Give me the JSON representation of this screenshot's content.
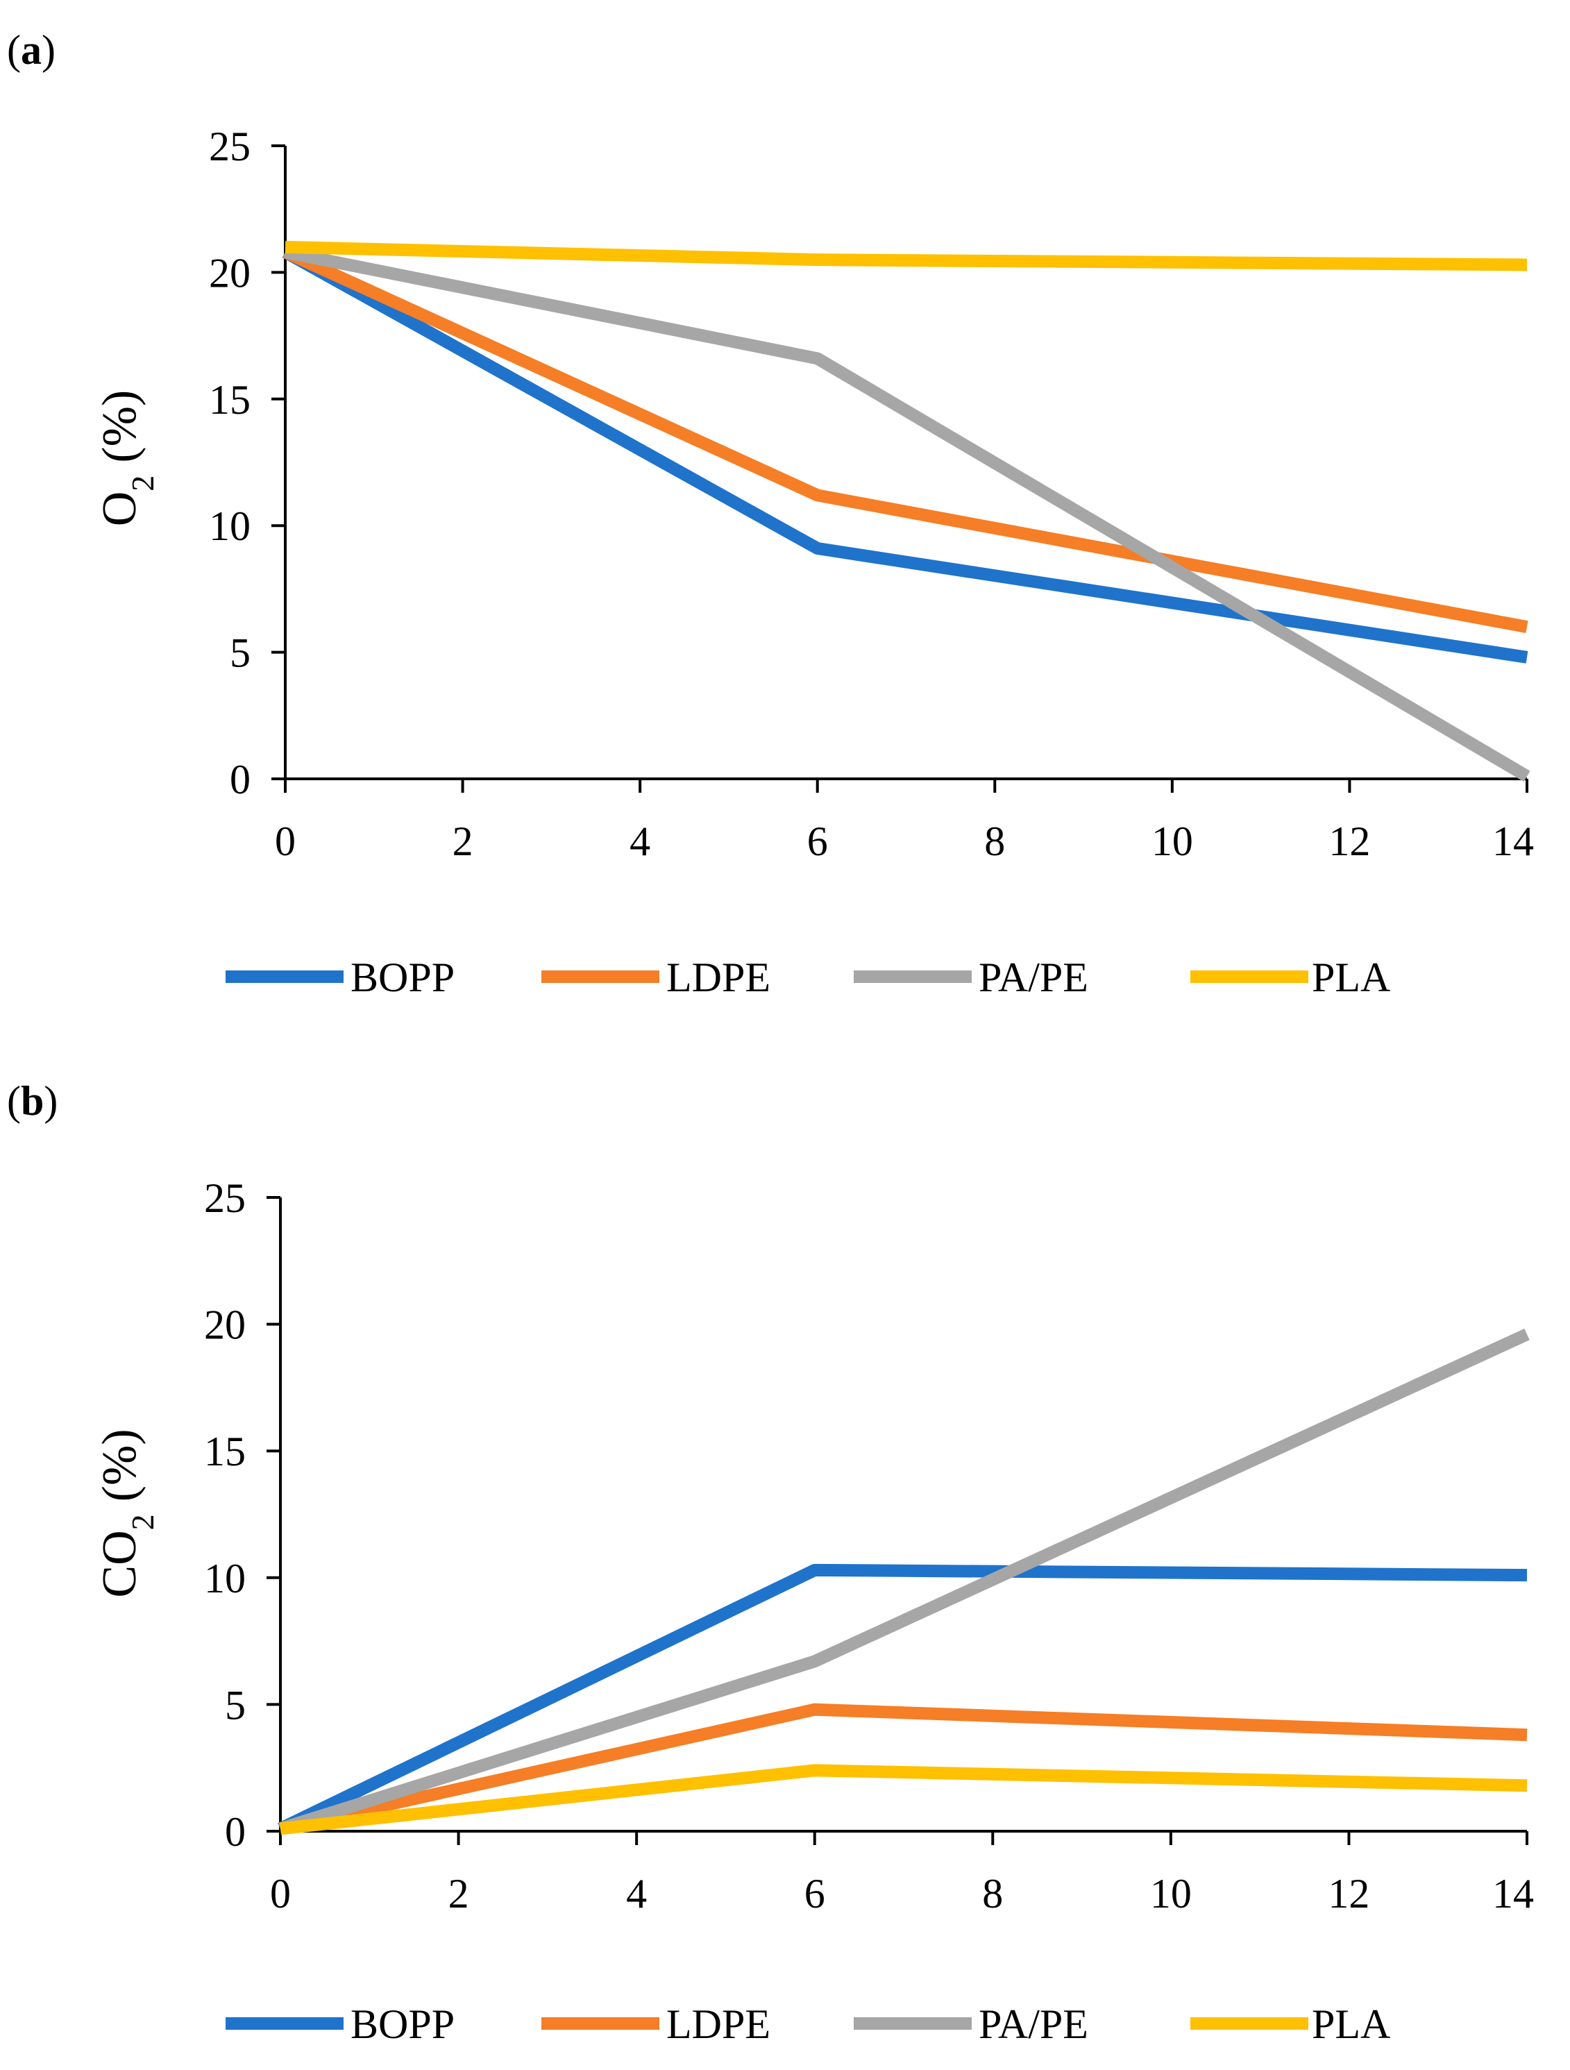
{
  "chart_data": [
    {
      "panel_label": "a",
      "type": "line",
      "title": "",
      "xlabel": "",
      "ylabel": "O2 (%)",
      "ylabel_main": "O",
      "ylabel_sub": "2",
      "ylabel_unit": "(%)",
      "x": [
        0,
        6,
        14
      ],
      "xlim": [
        0,
        14
      ],
      "ylim": [
        0,
        25
      ],
      "xticks": [
        "0",
        "2",
        "4",
        "6",
        "8",
        "10",
        "12",
        "14"
      ],
      "yticks": [
        "0",
        "5",
        "10",
        "15",
        "20",
        "25"
      ],
      "grid": false,
      "legend_position": "bottom",
      "series": [
        {
          "name": "BOPP",
          "color": "#1F73CB",
          "values": [
            20.8,
            9.1,
            4.8
          ]
        },
        {
          "name": "LDPE",
          "color": "#F57E26",
          "values": [
            20.8,
            11.2,
            6.0
          ]
        },
        {
          "name": "PA/PE",
          "color": "#A6A6A6",
          "values": [
            20.8,
            16.6,
            0.1
          ]
        },
        {
          "name": "PLA",
          "color": "#FFC000",
          "values": [
            21.0,
            20.5,
            20.3
          ]
        }
      ]
    },
    {
      "panel_label": "b",
      "type": "line",
      "title": "",
      "xlabel": "",
      "ylabel": "CO2 (%)",
      "ylabel_main": "CO",
      "ylabel_sub": "2",
      "ylabel_unit": "(%)",
      "x": [
        0,
        6,
        14
      ],
      "xlim": [
        0,
        14
      ],
      "ylim": [
        0,
        25
      ],
      "xticks": [
        "0",
        "2",
        "4",
        "6",
        "8",
        "10",
        "12",
        "14"
      ],
      "yticks": [
        "0",
        "5",
        "10",
        "15",
        "20",
        "25"
      ],
      "grid": false,
      "legend_position": "bottom",
      "series": [
        {
          "name": "BOPP",
          "color": "#1F73CB",
          "values": [
            0.1,
            10.3,
            10.1
          ]
        },
        {
          "name": "LDPE",
          "color": "#F57E26",
          "values": [
            0.1,
            4.8,
            3.8
          ]
        },
        {
          "name": "PA/PE",
          "color": "#A6A6A6",
          "values": [
            0.1,
            6.7,
            19.6
          ]
        },
        {
          "name": "PLA",
          "color": "#FFC000",
          "values": [
            0.1,
            2.4,
            1.8
          ]
        }
      ]
    }
  ]
}
